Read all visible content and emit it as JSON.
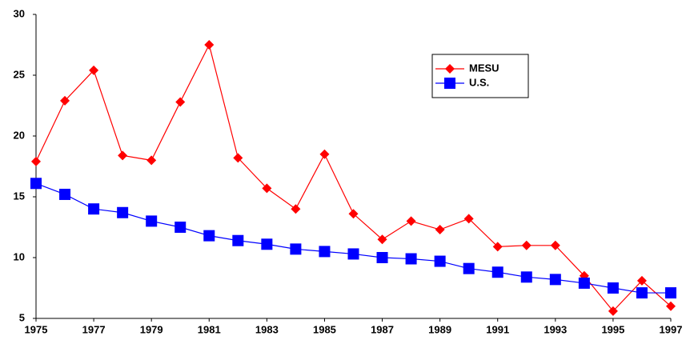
{
  "chart_data": {
    "type": "line",
    "x": [
      1975,
      1976,
      1977,
      1978,
      1979,
      1980,
      1981,
      1982,
      1983,
      1984,
      1985,
      1986,
      1987,
      1988,
      1989,
      1990,
      1991,
      1992,
      1993,
      1994,
      1995,
      1996,
      1997
    ],
    "series": [
      {
        "name": "MESU",
        "color": "#ff0000",
        "marker": "diamond",
        "values": [
          17.9,
          22.9,
          25.4,
          18.4,
          18.0,
          22.8,
          27.5,
          18.2,
          15.7,
          14.0,
          18.5,
          13.6,
          11.5,
          13.0,
          12.3,
          13.2,
          10.9,
          11.0,
          11.0,
          8.5,
          5.6,
          8.1,
          6.0
        ]
      },
      {
        "name": "U.S.",
        "color": "#0000ff",
        "marker": "square",
        "values": [
          16.1,
          15.2,
          14.0,
          13.7,
          13.0,
          12.5,
          11.8,
          11.4,
          11.1,
          10.7,
          10.5,
          10.3,
          10.0,
          9.9,
          9.7,
          9.1,
          8.8,
          8.4,
          8.2,
          7.9,
          7.5,
          7.1,
          7.1
        ]
      }
    ],
    "xlim": [
      1975,
      1997
    ],
    "xticks": [
      1975,
      1977,
      1979,
      1981,
      1983,
      1985,
      1987,
      1989,
      1991,
      1993,
      1995,
      1997
    ],
    "ylim": [
      5,
      30
    ],
    "yticks": [
      5,
      10,
      15,
      20,
      25,
      30
    ],
    "grid": false,
    "legend": "upper right"
  }
}
